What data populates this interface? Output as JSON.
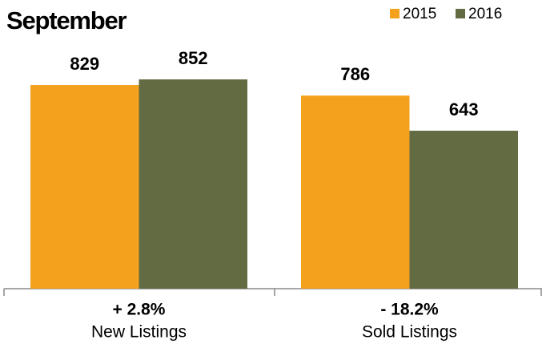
{
  "chart_data": {
    "type": "bar",
    "title": "September",
    "categories": [
      "New Listings",
      "Sold Listings"
    ],
    "annotations": [
      "+ 2.8%",
      "- 18.2%"
    ],
    "series": [
      {
        "name": "2015",
        "color": "#f4a21e",
        "values": [
          829,
          786
        ]
      },
      {
        "name": "2016",
        "color": "#636b42",
        "values": [
          852,
          643
        ]
      }
    ],
    "legend": "top-right"
  }
}
